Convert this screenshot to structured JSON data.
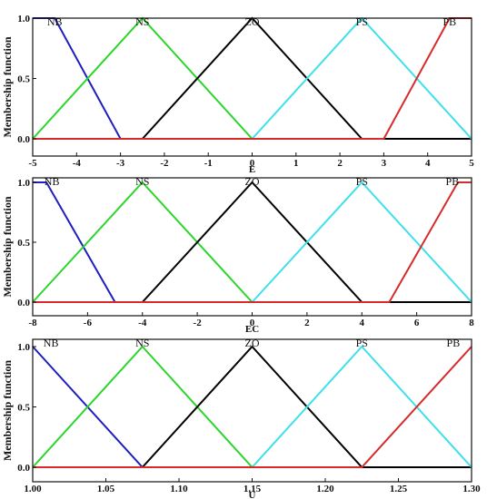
{
  "chart_data": [
    {
      "type": "line",
      "xlabel": "E",
      "ylabel": "Membership function",
      "xlim": [
        -5,
        5
      ],
      "ylim": [
        0,
        1
      ],
      "xticks": [
        -5,
        -4,
        -3,
        -2,
        -1,
        0,
        1,
        2,
        3,
        4,
        5
      ],
      "xtick_labels": [
        "-5",
        "-4",
        "-3",
        "-2",
        "-1",
        "0",
        "1",
        "2",
        "3",
        "4",
        "5"
      ],
      "yticks": [
        0,
        0.5,
        1
      ],
      "ytick_labels": [
        "0.0",
        "0.5",
        "1.0"
      ],
      "series": [
        {
          "name": "NB",
          "color": "#1f1fbf",
          "x": [
            -5,
            -4.5,
            -3,
            5
          ],
          "y": [
            1,
            1,
            0,
            0
          ]
        },
        {
          "name": "NS",
          "color": "#2bd62b",
          "x": [
            -5,
            -2.5,
            0,
            5
          ],
          "y": [
            0,
            1,
            0,
            0
          ]
        },
        {
          "name": "ZO",
          "color": "#000000",
          "x": [
            -5,
            -2.5,
            0,
            2.5,
            5
          ],
          "y": [
            0,
            0,
            1,
            0,
            0
          ]
        },
        {
          "name": "PS",
          "color": "#3ee0ec",
          "x": [
            -5,
            0,
            2.5,
            5
          ],
          "y": [
            0,
            0,
            1,
            0
          ]
        },
        {
          "name": "PB",
          "color": "#d62b2b",
          "x": [
            -5,
            3,
            4.5,
            5
          ],
          "y": [
            0,
            0,
            1,
            1
          ]
        }
      ],
      "set_labels": [
        {
          "text": "NB",
          "x": -4.5
        },
        {
          "text": "NS",
          "x": -2.5
        },
        {
          "text": "ZO",
          "x": 0
        },
        {
          "text": "PS",
          "x": 2.5
        },
        {
          "text": "PB",
          "x": 4.5
        }
      ]
    },
    {
      "type": "line",
      "xlabel": "EC",
      "ylabel": "Membership function",
      "xlim": [
        -8,
        8
      ],
      "ylim": [
        0,
        1
      ],
      "xticks": [
        -8,
        -6,
        -4,
        -2,
        0,
        2,
        4,
        6,
        8
      ],
      "xtick_labels": [
        "-8",
        "-6",
        "-4",
        "-2",
        "0",
        "2",
        "4",
        "6",
        "8"
      ],
      "yticks": [
        0,
        0.5,
        1
      ],
      "ytick_labels": [
        "0.0",
        "0.5",
        "1.0"
      ],
      "series": [
        {
          "name": "NB",
          "color": "#1f1fbf",
          "x": [
            -8,
            -7.5,
            -5,
            8
          ],
          "y": [
            1,
            1,
            0,
            0
          ]
        },
        {
          "name": "NS",
          "color": "#2bd62b",
          "x": [
            -8,
            -4,
            0,
            8
          ],
          "y": [
            0,
            1,
            0,
            0
          ]
        },
        {
          "name": "ZO",
          "color": "#000000",
          "x": [
            -8,
            -4,
            0,
            4,
            8
          ],
          "y": [
            0,
            0,
            1,
            0,
            0
          ]
        },
        {
          "name": "PS",
          "color": "#3ee0ec",
          "x": [
            -8,
            0,
            4,
            8
          ],
          "y": [
            0,
            0,
            1,
            0
          ]
        },
        {
          "name": "PB",
          "color": "#d62b2b",
          "x": [
            -8,
            5,
            7.5,
            8
          ],
          "y": [
            0,
            0,
            1,
            1
          ]
        }
      ],
      "set_labels": [
        {
          "text": "NB",
          "x": -7.3
        },
        {
          "text": "NS",
          "x": -4
        },
        {
          "text": "ZO",
          "x": 0
        },
        {
          "text": "PS",
          "x": 4
        },
        {
          "text": "PB",
          "x": 7.3
        }
      ]
    },
    {
      "type": "line",
      "xlabel": "U",
      "ylabel": "Membership function",
      "xlim": [
        1.0,
        1.3
      ],
      "ylim": [
        0,
        1
      ],
      "xticks": [
        1.0,
        1.05,
        1.1,
        1.15,
        1.2,
        1.25,
        1.3
      ],
      "xtick_labels": [
        "1.00",
        "1.05",
        "1.10",
        "1.15",
        "1.20",
        "1.25",
        "1.30"
      ],
      "yticks": [
        0,
        0.5,
        1
      ],
      "ytick_labels": [
        "0.0",
        "0.5",
        "1.0"
      ],
      "series": [
        {
          "name": "NB",
          "color": "#1f1fbf",
          "x": [
            1.0,
            1.075,
            1.3
          ],
          "y": [
            1,
            0,
            0
          ]
        },
        {
          "name": "NS",
          "color": "#2bd62b",
          "x": [
            1.0,
            1.075,
            1.15,
            1.3
          ],
          "y": [
            0,
            1,
            0,
            0
          ]
        },
        {
          "name": "ZO",
          "color": "#000000",
          "x": [
            1.0,
            1.075,
            1.15,
            1.225,
            1.3
          ],
          "y": [
            0,
            0,
            1,
            0,
            0
          ]
        },
        {
          "name": "PS",
          "color": "#3ee0ec",
          "x": [
            1.0,
            1.15,
            1.225,
            1.3
          ],
          "y": [
            0,
            0,
            1,
            0
          ]
        },
        {
          "name": "PB",
          "color": "#d62b2b",
          "x": [
            1.0,
            1.225,
            1.3
          ],
          "y": [
            0,
            0,
            1
          ]
        }
      ],
      "set_labels": [
        {
          "text": "NB",
          "x": 1.0125
        },
        {
          "text": "NS",
          "x": 1.075
        },
        {
          "text": "ZO",
          "x": 1.15
        },
        {
          "text": "PS",
          "x": 1.225
        },
        {
          "text": "PB",
          "x": 1.2875
        }
      ]
    }
  ]
}
